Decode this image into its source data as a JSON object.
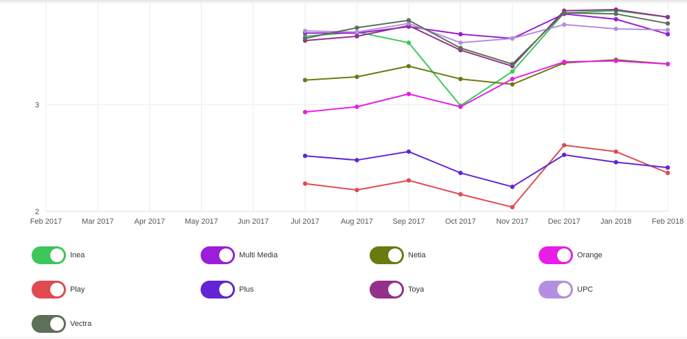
{
  "chart_data": {
    "type": "line",
    "title": "",
    "xlabel": "",
    "ylabel": "",
    "categories": [
      "Feb 2017",
      "Mar 2017",
      "Apr 2017",
      "May 2017",
      "Jun 2017",
      "Jul 2017",
      "Aug 2017",
      "Sep 2017",
      "Oct 2017",
      "Nov 2017",
      "Dec 2017",
      "Jan 2018",
      "Feb 2018"
    ],
    "yticks": [
      2,
      3
    ],
    "ylim": [
      2,
      3.98
    ],
    "grid": true,
    "legend_position": "bottom",
    "series": [
      {
        "name": "Inea",
        "color": "#3cc75a",
        "values": [
          null,
          null,
          null,
          null,
          null,
          3.64,
          3.68,
          3.58,
          2.99,
          3.31,
          3.86,
          3.88,
          3.82
        ]
      },
      {
        "name": "Multi Media",
        "color": "#9a1fd6",
        "values": [
          null,
          null,
          null,
          null,
          null,
          3.67,
          3.67,
          3.73,
          3.66,
          3.62,
          3.85,
          3.8,
          3.66
        ]
      },
      {
        "name": "Netia",
        "color": "#6b7a0f",
        "values": [
          null,
          null,
          null,
          null,
          null,
          3.23,
          3.26,
          3.36,
          3.24,
          3.19,
          3.39,
          3.42,
          3.38
        ]
      },
      {
        "name": "Orange",
        "color": "#e61ee6",
        "values": [
          null,
          null,
          null,
          null,
          null,
          2.93,
          2.98,
          3.1,
          2.98,
          3.24,
          3.4,
          3.41,
          3.38
        ]
      },
      {
        "name": "Play",
        "color": "#e04a50",
        "values": [
          null,
          null,
          null,
          null,
          null,
          2.26,
          2.2,
          2.29,
          2.16,
          2.04,
          2.62,
          2.56,
          2.36
        ]
      },
      {
        "name": "Plus",
        "color": "#6224d6",
        "values": [
          null,
          null,
          null,
          null,
          null,
          2.52,
          2.48,
          2.56,
          2.36,
          2.23,
          2.53,
          2.46,
          2.41
        ]
      },
      {
        "name": "Toya",
        "color": "#93308c",
        "values": [
          null,
          null,
          null,
          null,
          null,
          3.6,
          3.64,
          3.74,
          3.51,
          3.36,
          3.88,
          3.89,
          3.82
        ]
      },
      {
        "name": "UPC",
        "color": "#b48ee0",
        "values": [
          null,
          null,
          null,
          null,
          null,
          3.69,
          3.68,
          3.76,
          3.58,
          3.62,
          3.75,
          3.71,
          3.7
        ]
      },
      {
        "name": "Vectra",
        "color": "#5d7058",
        "values": [
          null,
          null,
          null,
          null,
          null,
          3.62,
          3.72,
          3.79,
          3.53,
          3.38,
          3.86,
          3.85,
          3.76
        ]
      }
    ]
  }
}
